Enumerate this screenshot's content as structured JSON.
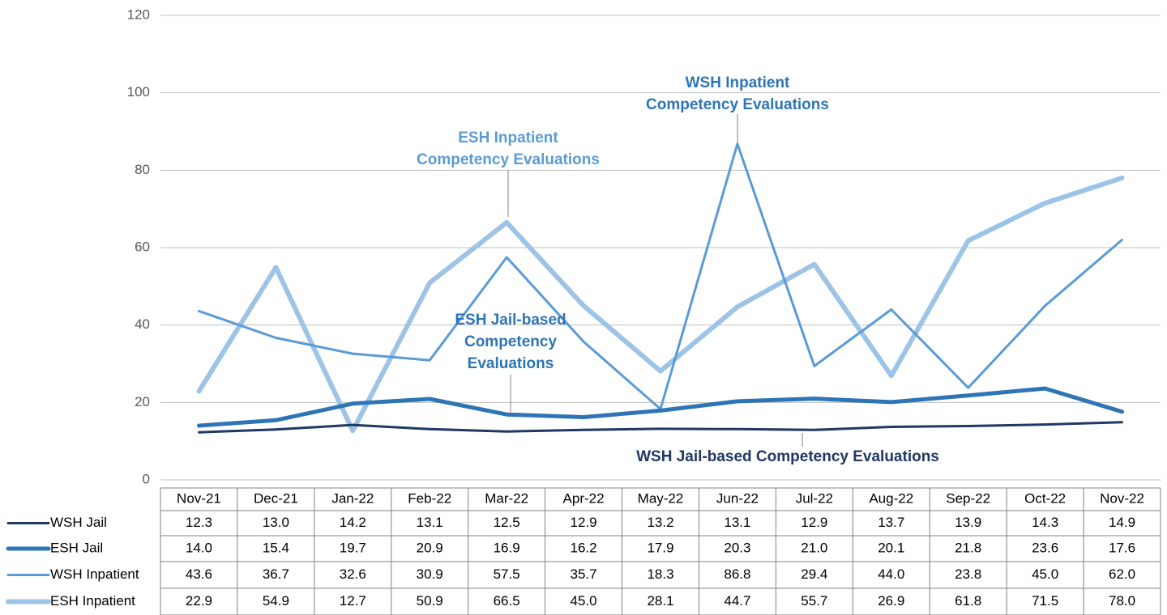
{
  "chart_data": {
    "type": "line",
    "categories": [
      "Nov-21",
      "Dec-21",
      "Jan-22",
      "Feb-22",
      "Mar-22",
      "Apr-22",
      "May-22",
      "Jun-22",
      "Jul-22",
      "Aug-22",
      "Sep-22",
      "Oct-22",
      "Nov-22"
    ],
    "series": [
      {
        "name": "WSH Jail",
        "color": "#1f3864",
        "values": [
          12.3,
          13.0,
          14.2,
          13.1,
          12.5,
          12.9,
          13.2,
          13.1,
          12.9,
          13.7,
          13.9,
          14.3,
          14.9
        ],
        "value_labels": [
          "12.3",
          "13.0",
          "14.2",
          "13.1",
          "12.5",
          "12.9",
          "13.2",
          "13.1",
          "12.9",
          "13.7",
          "13.9",
          "14.3",
          "14.9"
        ]
      },
      {
        "name": "ESH Jail",
        "color": "#2e75b6",
        "values": [
          14.0,
          15.4,
          19.7,
          20.9,
          16.9,
          16.2,
          17.9,
          20.3,
          21.0,
          20.1,
          21.8,
          23.6,
          17.6
        ],
        "value_labels": [
          "14.0",
          "15.4",
          "19.7",
          "20.9",
          "16.9",
          "16.2",
          "17.9",
          "20.3",
          "21.0",
          "20.1",
          "21.8",
          "23.6",
          "17.6"
        ]
      },
      {
        "name": "WSH Inpatient",
        "color": "#5b9bd5",
        "values": [
          43.6,
          36.7,
          32.6,
          30.9,
          57.5,
          35.7,
          18.3,
          86.8,
          29.4,
          44.0,
          23.8,
          45.0,
          62.0
        ],
        "value_labels": [
          "43.6",
          "36.7",
          "32.6",
          "30.9",
          "57.5",
          "35.7",
          "18.3",
          "86.8",
          "29.4",
          "44.0",
          "23.8",
          "45.0",
          "62.0"
        ]
      },
      {
        "name": "ESH Inpatient",
        "color": "#9dc3e6",
        "values": [
          22.9,
          54.9,
          12.7,
          50.9,
          66.5,
          45.0,
          28.1,
          44.7,
          55.7,
          26.9,
          61.8,
          71.5,
          78.0
        ],
        "value_labels": [
          "22.9",
          "54.9",
          "12.7",
          "50.9",
          "66.5",
          "45.0",
          "28.1",
          "44.7",
          "55.7",
          "26.9",
          "61.8",
          "71.5",
          "78.0"
        ]
      }
    ],
    "ylim": [
      0,
      120
    ],
    "yticks": [
      0,
      20,
      40,
      60,
      80,
      100,
      120
    ],
    "grid": true,
    "annotations": [
      {
        "lines": [
          "ESH Inpatient",
          "Competency Evaluations"
        ],
        "color": "#5b9bd5"
      },
      {
        "lines": [
          "WSH Inpatient",
          "Competency Evaluations"
        ],
        "color": "#2e75b6"
      },
      {
        "lines": [
          "ESH Jail-based",
          "Competency",
          "Evaluations"
        ],
        "color": "#2e75b6"
      },
      {
        "lines": [
          "WSH Jail-based Competency Evaluations"
        ],
        "color": "#1f3864"
      }
    ]
  }
}
